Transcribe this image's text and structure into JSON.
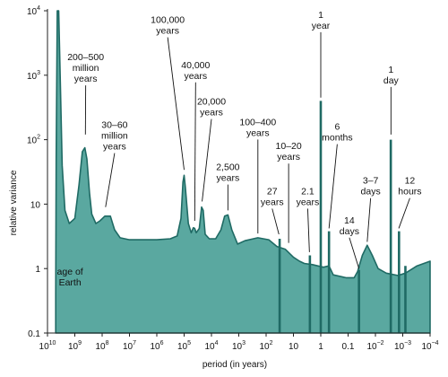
{
  "chart_data": {
    "type": "area",
    "title": "",
    "xlabel": "period (in years)",
    "ylabel": "relative variance",
    "x_scale": "log-reversed",
    "y_scale": "log",
    "xlim": [
      10000000000.0,
      0.0001
    ],
    "ylim": [
      0.1,
      10000
    ],
    "grid": false,
    "colors": {
      "fill": "#5aa8a0",
      "stroke": "#1f6a64",
      "spike": "#1f6a64"
    },
    "x_ticks": [
      {
        "base": "10",
        "exp": "10",
        "value": 10000000000.0
      },
      {
        "base": "10",
        "exp": "9",
        "value": 1000000000.0
      },
      {
        "base": "10",
        "exp": "8",
        "value": 100000000.0
      },
      {
        "base": "10",
        "exp": "7",
        "value": 10000000.0
      },
      {
        "base": "10",
        "exp": "6",
        "value": 1000000.0
      },
      {
        "base": "10",
        "exp": "5",
        "value": 100000.0
      },
      {
        "base": "10",
        "exp": "4",
        "value": 10000.0
      },
      {
        "base": "10",
        "exp": "3",
        "value": 1000.0
      },
      {
        "base": "10",
        "exp": "2",
        "value": 100
      },
      {
        "base": "10",
        "exp": "",
        "value": 10
      },
      {
        "base": "1",
        "exp": "",
        "value": 1
      },
      {
        "base": "0.1",
        "exp": "",
        "value": 0.1
      },
      {
        "base": "10",
        "exp": "−2",
        "value": 0.01
      },
      {
        "base": "10",
        "exp": "−3",
        "value": 0.001
      },
      {
        "base": "10",
        "exp": "−4",
        "value": 0.0001
      }
    ],
    "y_ticks": [
      {
        "base": "10",
        "exp": "4",
        "value": 10000
      },
      {
        "base": "10",
        "exp": "3",
        "value": 1000
      },
      {
        "base": "10",
        "exp": "2",
        "value": 100
      },
      {
        "base": "10",
        "exp": "",
        "value": 10
      },
      {
        "base": "1",
        "exp": "",
        "value": 1
      },
      {
        "base": "0.1",
        "exp": "",
        "value": 0.1
      }
    ],
    "spectrum": [
      {
        "x": 5000000000.0,
        "y": 0.1
      },
      {
        "x": 5000000000.0,
        "y": 0.4
      },
      {
        "x": 4800000000.0,
        "y": 50
      },
      {
        "x": 4400000000.0,
        "y": 10000
      },
      {
        "x": 3900000000.0,
        "y": 10000
      },
      {
        "x": 3400000000.0,
        "y": 800
      },
      {
        "x": 2900000000.0,
        "y": 40
      },
      {
        "x": 2300000000.0,
        "y": 8
      },
      {
        "x": 1600000000.0,
        "y": 5
      },
      {
        "x": 1000000000.0,
        "y": 6
      },
      {
        "x": 700000000.0,
        "y": 20
      },
      {
        "x": 530000000.0,
        "y": 65
      },
      {
        "x": 430000000.0,
        "y": 75
      },
      {
        "x": 360000000.0,
        "y": 50
      },
      {
        "x": 290000000.0,
        "y": 15
      },
      {
        "x": 240000000.0,
        "y": 7
      },
      {
        "x": 170000000.0,
        "y": 5
      },
      {
        "x": 120000000.0,
        "y": 5.5
      },
      {
        "x": 80000000.0,
        "y": 6.5
      },
      {
        "x": 50000000.0,
        "y": 6.5
      },
      {
        "x": 35000000.0,
        "y": 4
      },
      {
        "x": 22000000.0,
        "y": 3
      },
      {
        "x": 10000000.0,
        "y": 2.8
      },
      {
        "x": 1000000.0,
        "y": 2.8
      },
      {
        "x": 320000.0,
        "y": 2.9
      },
      {
        "x": 180000.0,
        "y": 3.2
      },
      {
        "x": 130000.0,
        "y": 6
      },
      {
        "x": 110000.0,
        "y": 22
      },
      {
        "x": 100000.0,
        "y": 28
      },
      {
        "x": 90000.0,
        "y": 18
      },
      {
        "x": 70000.0,
        "y": 5
      },
      {
        "x": 55000.0,
        "y": 3.6
      },
      {
        "x": 46000.0,
        "y": 4.3
      },
      {
        "x": 41000.0,
        "y": 4.2
      },
      {
        "x": 36000.0,
        "y": 3.6
      },
      {
        "x": 28000.0,
        "y": 4.2
      },
      {
        "x": 23000.0,
        "y": 9
      },
      {
        "x": 20000.0,
        "y": 8
      },
      {
        "x": 17000.0,
        "y": 3.4
      },
      {
        "x": 12000.0,
        "y": 2.9
      },
      {
        "x": 7000.0,
        "y": 2.9
      },
      {
        "x": 4500.0,
        "y": 4
      },
      {
        "x": 3300.0,
        "y": 6.5
      },
      {
        "x": 2500.0,
        "y": 6.8
      },
      {
        "x": 1800.0,
        "y": 4
      },
      {
        "x": 1100.0,
        "y": 2.4
      },
      {
        "x": 600.0,
        "y": 2.7
      },
      {
        "x": 200.0,
        "y": 3
      },
      {
        "x": 80,
        "y": 2.8
      },
      {
        "x": 40,
        "y": 2.2
      },
      {
        "x": 20,
        "y": 2
      },
      {
        "x": 10,
        "y": 1.5
      },
      {
        "x": 6,
        "y": 1.3
      },
      {
        "x": 4,
        "y": 1.2
      },
      {
        "x": 2,
        "y": 1.15
      },
      {
        "x": 1.3,
        "y": 1.1
      },
      {
        "x": 0.8,
        "y": 1.05
      },
      {
        "x": 0.5,
        "y": 1.1
      },
      {
        "x": 0.35,
        "y": 0.8
      },
      {
        "x": 0.12,
        "y": 0.72
      },
      {
        "x": 0.06,
        "y": 0.72
      },
      {
        "x": 0.045,
        "y": 0.9
      },
      {
        "x": 0.03,
        "y": 1.6
      },
      {
        "x": 0.02,
        "y": 2.3
      },
      {
        "x": 0.013,
        "y": 1.6
      },
      {
        "x": 0.008,
        "y": 1.0
      },
      {
        "x": 0.004,
        "y": 0.85
      },
      {
        "x": 0.0015,
        "y": 0.78
      },
      {
        "x": 0.0008,
        "y": 0.85
      },
      {
        "x": 0.0003,
        "y": 1.1
      },
      {
        "x": 0.0001,
        "y": 1.3
      },
      {
        "x": 0.0001,
        "y": 0.1
      }
    ],
    "spikes": [
      {
        "x": 32,
        "y": 2.9
      },
      {
        "x": 2.5,
        "y": 1.6
      },
      {
        "x": 1,
        "y": 400
      },
      {
        "x": 0.5,
        "y": 3.8
      },
      {
        "x": 0.04,
        "y": 0.95
      },
      {
        "x": 0.00274,
        "y": 100
      },
      {
        "x": 0.00137,
        "y": 3.8
      },
      {
        "x": 0.0008,
        "y": 1.1
      }
    ],
    "annotations": [
      {
        "lines": [
          "age of",
          "Earth"
        ],
        "tx": 1500000000.0,
        "ty": 0.62,
        "pointer": null
      },
      {
        "lines": [
          "200–500",
          "million",
          "years"
        ],
        "tx": 400000000.0,
        "ty": 900,
        "pointer": {
          "x": 410000000.0,
          "y": 120
        }
      },
      {
        "lines": [
          "30–60",
          "million",
          "years"
        ],
        "tx": 35000000.0,
        "ty": 80,
        "pointer": {
          "x": 75000000.0,
          "y": 9
        }
      },
      {
        "lines": [
          "100,000",
          "years"
        ],
        "tx": 400000.0,
        "ty": 5000,
        "pointer": {
          "x": 100000.0,
          "y": 34
        }
      },
      {
        "lines": [
          "40,000",
          "years"
        ],
        "tx": 38000.0,
        "ty": 1000,
        "pointer": {
          "x": 41000.0,
          "y": 5.5
        }
      },
      {
        "lines": [
          "20,000",
          "years"
        ],
        "tx": 10000.0,
        "ty": 270,
        "pointer": {
          "x": 22000.0,
          "y": 11
        }
      },
      {
        "lines": [
          "100–400",
          "years"
        ],
        "tx": 200,
        "ty": 130,
        "pointer": {
          "x": 200,
          "y": 3.5
        }
      },
      {
        "lines": [
          "2,500",
          "years"
        ],
        "tx": 2500.0,
        "ty": 26,
        "pointer": {
          "x": 2500.0,
          "y": 8
        }
      },
      {
        "lines": [
          "10–20",
          "years"
        ],
        "tx": 15,
        "ty": 55,
        "pointer": {
          "x": 15,
          "y": 2.5
        }
      },
      {
        "lines": [
          "27",
          "years"
        ],
        "tx": 60,
        "ty": 11,
        "pointer": {
          "x": 34,
          "y": 3.4
        }
      },
      {
        "lines": [
          "2.1",
          "years"
        ],
        "tx": 3,
        "ty": 11,
        "pointer": {
          "x": 2.6,
          "y": 1.8
        }
      },
      {
        "lines": [
          "1",
          "year"
        ],
        "tx": 1,
        "ty": 6000,
        "pointer": {
          "x": 1,
          "y": 450
        }
      },
      {
        "lines": [
          "6",
          "months"
        ],
        "tx": 0.25,
        "ty": 110,
        "pointer": {
          "x": 0.5,
          "y": 4.2
        }
      },
      {
        "lines": [
          "14",
          "days"
        ],
        "tx": 0.09,
        "ty": 3.9,
        "pointer": {
          "x": 0.04,
          "y": 1.0
        }
      },
      {
        "lines": [
          "3–7",
          "days"
        ],
        "tx": 0.015,
        "ty": 16,
        "pointer": {
          "x": 0.02,
          "y": 2.6
        }
      },
      {
        "lines": [
          "1",
          "day"
        ],
        "tx": 0.0027,
        "ty": 850,
        "pointer": {
          "x": 0.0027,
          "y": 120
        }
      },
      {
        "lines": [
          "12",
          "hours"
        ],
        "tx": 0.00055,
        "ty": 16,
        "pointer": {
          "x": 0.0014,
          "y": 4.2
        }
      }
    ]
  }
}
